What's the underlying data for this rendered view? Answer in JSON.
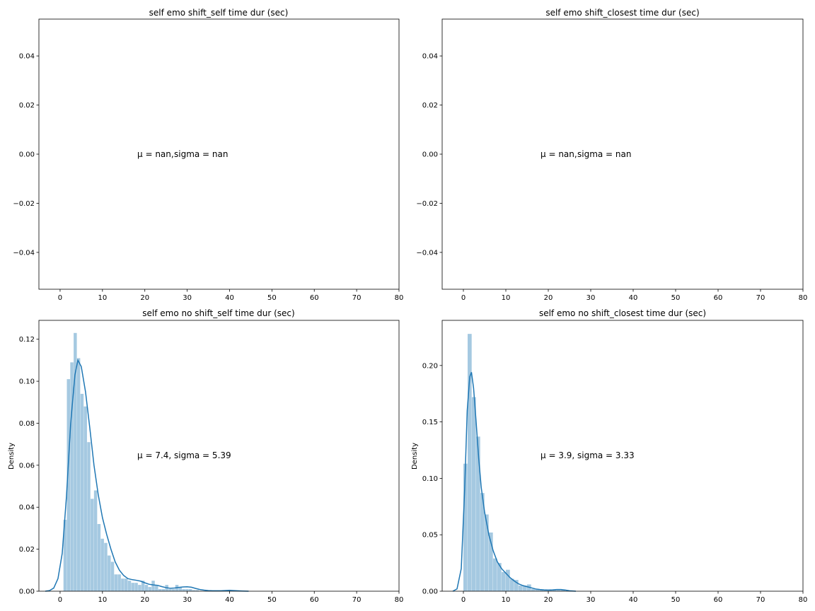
{
  "chart_data": [
    {
      "type": "histogram",
      "title": "self emo shift_self time dur (sec)",
      "xlabel": "",
      "ylabel": "",
      "xlim": [
        -5,
        80
      ],
      "ylim": [
        -0.055,
        0.055
      ],
      "xticks": [
        "0",
        "10",
        "20",
        "30",
        "40",
        "50",
        "60",
        "70",
        "80"
      ],
      "yticks": [
        "−0.04",
        "−0.02",
        "0.00",
        "0.02",
        "0.04"
      ],
      "annotation": {
        "mu": "nan",
        "sigma": "nan",
        "mu_label": "μ = nan,",
        "sigma_label": "sigma = nan"
      },
      "bars": [],
      "kde": []
    },
    {
      "type": "histogram",
      "title": "self emo shift_closest time dur (sec)",
      "xlabel": "",
      "ylabel": "",
      "xlim": [
        -5,
        80
      ],
      "ylim": [
        -0.055,
        0.055
      ],
      "xticks": [
        "0",
        "10",
        "20",
        "30",
        "40",
        "50",
        "60",
        "70",
        "80"
      ],
      "yticks": [
        "−0.04",
        "−0.02",
        "0.00",
        "0.02",
        "0.04"
      ],
      "annotation": {
        "mu": "nan",
        "sigma": "nan",
        "mu_label": "μ = nan,",
        "sigma_label": "sigma = nan"
      },
      "bars": [],
      "kde": []
    },
    {
      "type": "histogram",
      "title": "self emo no shift_self time dur (sec)",
      "xlabel": "",
      "ylabel": "Density",
      "xlim": [
        -5,
        80
      ],
      "ylim": [
        0,
        0.129
      ],
      "xticks": [
        "0",
        "10",
        "20",
        "30",
        "40",
        "50",
        "60",
        "70",
        "80"
      ],
      "yticks": [
        "0.00",
        "0.02",
        "0.04",
        "0.06",
        "0.08",
        "0.10",
        "0.12"
      ],
      "annotation": {
        "mu": "7.4",
        "sigma": "5.39",
        "mu_label": "μ = 7.4,",
        "sigma_label": "sigma = 5.39"
      },
      "bars": [
        {
          "x0": 0.8,
          "x1": 1.6,
          "y": 0.034
        },
        {
          "x0": 1.6,
          "x1": 2.4,
          "y": 0.0
        },
        {
          "x0": 1.6,
          "x1": 2.4,
          "y": 0.101
        },
        {
          "x0": 2.4,
          "x1": 3.2,
          "y": 0.109
        },
        {
          "x0": 3.2,
          "x1": 4.0,
          "y": 0.123
        },
        {
          "x0": 4.0,
          "x1": 4.8,
          "y": 0.111
        },
        {
          "x0": 4.8,
          "x1": 5.6,
          "y": 0.094
        },
        {
          "x0": 5.6,
          "x1": 6.4,
          "y": 0.088
        },
        {
          "x0": 6.4,
          "x1": 7.2,
          "y": 0.071
        },
        {
          "x0": 7.2,
          "x1": 8.0,
          "y": 0.044
        },
        {
          "x0": 8.0,
          "x1": 8.8,
          "y": 0.048
        },
        {
          "x0": 8.8,
          "x1": 9.6,
          "y": 0.032
        },
        {
          "x0": 9.6,
          "x1": 10.4,
          "y": 0.025
        },
        {
          "x0": 10.4,
          "x1": 11.2,
          "y": 0.023
        },
        {
          "x0": 11.2,
          "x1": 12.0,
          "y": 0.017
        },
        {
          "x0": 12.0,
          "x1": 12.8,
          "y": 0.014
        },
        {
          "x0": 12.8,
          "x1": 13.6,
          "y": 0.008
        },
        {
          "x0": 13.6,
          "x1": 14.4,
          "y": 0.008
        },
        {
          "x0": 14.4,
          "x1": 15.2,
          "y": 0.006
        },
        {
          "x0": 15.2,
          "x1": 16.0,
          "y": 0.006
        },
        {
          "x0": 16.0,
          "x1": 16.8,
          "y": 0.005
        },
        {
          "x0": 16.8,
          "x1": 17.6,
          "y": 0.004
        },
        {
          "x0": 17.6,
          "x1": 18.4,
          "y": 0.004
        },
        {
          "x0": 18.4,
          "x1": 19.2,
          "y": 0.003
        },
        {
          "x0": 19.2,
          "x1": 20.0,
          "y": 0.005
        },
        {
          "x0": 20.0,
          "x1": 20.8,
          "y": 0.003
        },
        {
          "x0": 20.8,
          "x1": 21.6,
          "y": 0.002
        },
        {
          "x0": 21.6,
          "x1": 22.4,
          "y": 0.005
        },
        {
          "x0": 22.4,
          "x1": 23.2,
          "y": 0.003
        },
        {
          "x0": 23.2,
          "x1": 24.0,
          "y": 0.001
        },
        {
          "x0": 24.0,
          "x1": 24.8,
          "y": 0.001
        },
        {
          "x0": 24.8,
          "x1": 25.6,
          "y": 0.003
        },
        {
          "x0": 25.6,
          "x1": 26.4,
          "y": 0.001
        },
        {
          "x0": 26.4,
          "x1": 27.2,
          "y": 0.001
        },
        {
          "x0": 27.2,
          "x1": 28.0,
          "y": 0.003
        },
        {
          "x0": 28.0,
          "x1": 28.8,
          "y": 0.002
        },
        {
          "x0": 28.8,
          "x1": 29.6,
          "y": 0.001
        },
        {
          "x0": 29.6,
          "x1": 30.4,
          "y": 0.001
        },
        {
          "x0": 30.4,
          "x1": 31.2,
          "y": 0.001
        },
        {
          "x0": 31.2,
          "x1": 32.0,
          "y": 0.0005
        },
        {
          "x0": 32.0,
          "x1": 32.8,
          "y": 0.0005
        },
        {
          "x0": 39.2,
          "x1": 40.0,
          "y": 0.0004
        }
      ],
      "kde": [
        [
          -3.5,
          0.0
        ],
        [
          -2.5,
          0.0003
        ],
        [
          -1.5,
          0.0015
        ],
        [
          -0.5,
          0.006
        ],
        [
          0.5,
          0.018
        ],
        [
          1.5,
          0.045
        ],
        [
          2.5,
          0.08
        ],
        [
          3.5,
          0.103
        ],
        [
          4.2,
          0.11
        ],
        [
          5.0,
          0.107
        ],
        [
          6.0,
          0.095
        ],
        [
          7.0,
          0.078
        ],
        [
          8.0,
          0.06
        ],
        [
          9.0,
          0.046
        ],
        [
          10.0,
          0.035
        ],
        [
          11.0,
          0.027
        ],
        [
          12.0,
          0.02
        ],
        [
          13.0,
          0.014
        ],
        [
          14.0,
          0.01
        ],
        [
          15.0,
          0.0075
        ],
        [
          16.0,
          0.006
        ],
        [
          17.0,
          0.0055
        ],
        [
          18.0,
          0.0052
        ],
        [
          19.0,
          0.0048
        ],
        [
          20.0,
          0.004
        ],
        [
          21.0,
          0.0033
        ],
        [
          22.0,
          0.003
        ],
        [
          23.0,
          0.0028
        ],
        [
          24.0,
          0.0022
        ],
        [
          25.0,
          0.0017
        ],
        [
          26.0,
          0.0014
        ],
        [
          27.0,
          0.0015
        ],
        [
          28.0,
          0.0018
        ],
        [
          29.0,
          0.002
        ],
        [
          30.0,
          0.0021
        ],
        [
          31.0,
          0.0019
        ],
        [
          32.0,
          0.0013
        ],
        [
          33.0,
          0.0008
        ],
        [
          34.0,
          0.0005
        ],
        [
          35.0,
          0.0003
        ],
        [
          36.0,
          0.0002
        ],
        [
          38.0,
          0.0002
        ],
        [
          40.0,
          0.0004
        ],
        [
          41.0,
          0.0003
        ],
        [
          43.0,
          0.0001
        ],
        [
          44.5,
          0.0
        ]
      ]
    },
    {
      "type": "histogram",
      "title": "self emo no shift_closest time dur (sec)",
      "xlabel": "",
      "ylabel": "Density",
      "xlim": [
        -5,
        80
      ],
      "ylim": [
        0,
        0.24
      ],
      "xticks": [
        "0",
        "10",
        "20",
        "30",
        "40",
        "50",
        "60",
        "70",
        "80"
      ],
      "yticks": [
        "0.00",
        "0.05",
        "0.10",
        "0.15",
        "0.20"
      ],
      "annotation": {
        "mu": "3.9",
        "sigma": "3.33",
        "mu_label": "μ = 3.9,",
        "sigma_label": "sigma = 3.33"
      },
      "bars": [
        {
          "x0": 0.0,
          "x1": 1.0,
          "y": 0.113
        },
        {
          "x0": 1.0,
          "x1": 2.0,
          "y": 0.228
        },
        {
          "x0": 2.0,
          "x1": 3.0,
          "y": 0.172
        },
        {
          "x0": 3.0,
          "x1": 4.0,
          "y": 0.137
        },
        {
          "x0": 4.0,
          "x1": 5.0,
          "y": 0.087
        },
        {
          "x0": 5.0,
          "x1": 6.0,
          "y": 0.068
        },
        {
          "x0": 6.0,
          "x1": 7.0,
          "y": 0.052
        },
        {
          "x0": 7.0,
          "x1": 8.0,
          "y": 0.029
        },
        {
          "x0": 8.0,
          "x1": 9.0,
          "y": 0.025
        },
        {
          "x0": 9.0,
          "x1": 10.0,
          "y": 0.017
        },
        {
          "x0": 10.0,
          "x1": 11.0,
          "y": 0.019
        },
        {
          "x0": 11.0,
          "x1": 12.0,
          "y": 0.011
        },
        {
          "x0": 12.0,
          "x1": 13.0,
          "y": 0.01
        },
        {
          "x0": 13.0,
          "x1": 14.0,
          "y": 0.005
        },
        {
          "x0": 14.0,
          "x1": 15.0,
          "y": 0.005
        },
        {
          "x0": 15.0,
          "x1": 16.0,
          "y": 0.006
        },
        {
          "x0": 16.0,
          "x1": 17.0,
          "y": 0.002
        },
        {
          "x0": 17.0,
          "x1": 18.0,
          "y": 0.002
        },
        {
          "x0": 18.0,
          "x1": 19.0,
          "y": 0.001
        },
        {
          "x0": 19.0,
          "x1": 20.0,
          "y": 0.001
        },
        {
          "x0": 20.0,
          "x1": 21.0,
          "y": 0.001
        },
        {
          "x0": 21.0,
          "x1": 22.0,
          "y": 0.001
        },
        {
          "x0": 22.0,
          "x1": 23.0,
          "y": 0.001
        },
        {
          "x0": 23.0,
          "x1": 24.0,
          "y": 0.001
        }
      ],
      "kde": [
        [
          -2.5,
          0.0
        ],
        [
          -1.5,
          0.002
        ],
        [
          -0.5,
          0.02
        ],
        [
          0.3,
          0.09
        ],
        [
          0.9,
          0.16
        ],
        [
          1.5,
          0.19
        ],
        [
          1.9,
          0.194
        ],
        [
          2.4,
          0.18
        ],
        [
          3.0,
          0.15
        ],
        [
          3.6,
          0.118
        ],
        [
          4.2,
          0.092
        ],
        [
          5.0,
          0.07
        ],
        [
          6.0,
          0.05
        ],
        [
          7.0,
          0.036
        ],
        [
          8.0,
          0.026
        ],
        [
          9.0,
          0.02
        ],
        [
          10.0,
          0.016
        ],
        [
          11.0,
          0.012
        ],
        [
          12.0,
          0.009
        ],
        [
          13.0,
          0.0065
        ],
        [
          14.0,
          0.005
        ],
        [
          15.0,
          0.004
        ],
        [
          16.0,
          0.003
        ],
        [
          17.0,
          0.002
        ],
        [
          18.0,
          0.0015
        ],
        [
          19.0,
          0.0012
        ],
        [
          20.0,
          0.001
        ],
        [
          21.0,
          0.0012
        ],
        [
          22.0,
          0.0015
        ],
        [
          23.0,
          0.0015
        ],
        [
          24.0,
          0.001
        ],
        [
          25.0,
          0.0004
        ],
        [
          26.5,
          0.0
        ]
      ]
    }
  ],
  "colors": {
    "bar_fill": "#1f77b4",
    "bar_opacity": 0.4,
    "kde_line": "#1f77b4",
    "axis": "#000000"
  }
}
